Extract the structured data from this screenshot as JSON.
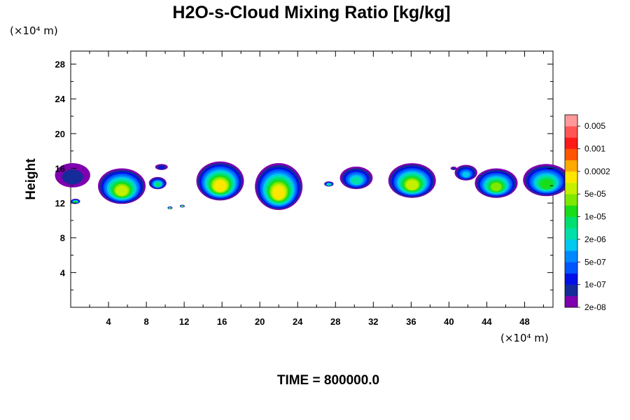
{
  "chart_data": {
    "type": "heatmap",
    "title": "H2O-s-Cloud Mixing Ratio [kg/kg]",
    "xlabel": "",
    "ylabel": "Height",
    "x_unit_label": "(×10⁴ m)",
    "y_unit_label": "(×10⁴ m)",
    "xlim": [
      0,
      51
    ],
    "ylim": [
      0,
      29.5
    ],
    "x_ticks": [
      "4",
      "8",
      "12",
      "16",
      "20",
      "24",
      "28",
      "32",
      "36",
      "40",
      "44",
      "48"
    ],
    "y_ticks": [
      "4",
      "8",
      "12",
      "16",
      "20",
      "24",
      "28"
    ],
    "x_tick_values": [
      4,
      8,
      12,
      16,
      20,
      24,
      28,
      32,
      36,
      40,
      44,
      48
    ],
    "y_tick_values": [
      4,
      8,
      12,
      16,
      20,
      24,
      28
    ],
    "time_label": "TIME = 800000.0",
    "grid": false,
    "colorbar": {
      "labels": [
        "0.005",
        "0.001",
        "0.0002",
        "5e-05",
        "1e-05",
        "2e-06",
        "5e-07",
        "1e-07",
        "2e-08"
      ],
      "colors": [
        "#7f00b0",
        "#142b99",
        "#0010e6",
        "#0055ff",
        "#0088ff",
        "#00c8ee",
        "#00e0a8",
        "#00e070",
        "#19dd19",
        "#7ee800",
        "#c4f000",
        "#ffe600",
        "#ffaa00",
        "#ff5500",
        "#ff1a1a",
        "#ff5555",
        "#ff9999"
      ]
    },
    "clouds": [
      {
        "x": 0.2,
        "top": 16.6,
        "bottom": 13.8,
        "peak": 1
      },
      {
        "x": 0.5,
        "top": 12.5,
        "bottom": 11.9,
        "peak": 8
      },
      {
        "x": 5.4,
        "top": 16.0,
        "bottom": 11.9,
        "peak": 10
      },
      {
        "x": 9.2,
        "top": 15.0,
        "bottom": 13.6,
        "peak": 7
      },
      {
        "x": 9.6,
        "top": 16.5,
        "bottom": 15.8,
        "peak": 2
      },
      {
        "x": 10.5,
        "top": 11.6,
        "bottom": 11.3,
        "peak": 9
      },
      {
        "x": 11.8,
        "top": 11.8,
        "bottom": 11.5,
        "peak": 9
      },
      {
        "x": 15.8,
        "top": 16.8,
        "bottom": 12.3,
        "peak": 11
      },
      {
        "x": 22.0,
        "top": 16.6,
        "bottom": 11.2,
        "peak": 11
      },
      {
        "x": 27.3,
        "top": 14.5,
        "bottom": 13.9,
        "peak": 7
      },
      {
        "x": 30.2,
        "top": 16.2,
        "bottom": 13.6,
        "peak": 6
      },
      {
        "x": 36.1,
        "top": 16.6,
        "bottom": 12.6,
        "peak": 10
      },
      {
        "x": 40.5,
        "top": 16.2,
        "bottom": 15.8,
        "peak": 1
      },
      {
        "x": 41.8,
        "top": 16.4,
        "bottom": 14.6,
        "peak": 5
      },
      {
        "x": 45.0,
        "top": 16.0,
        "bottom": 12.6,
        "peak": 9
      },
      {
        "x": 50.3,
        "top": 16.5,
        "bottom": 12.8,
        "peak": 8
      }
    ]
  }
}
